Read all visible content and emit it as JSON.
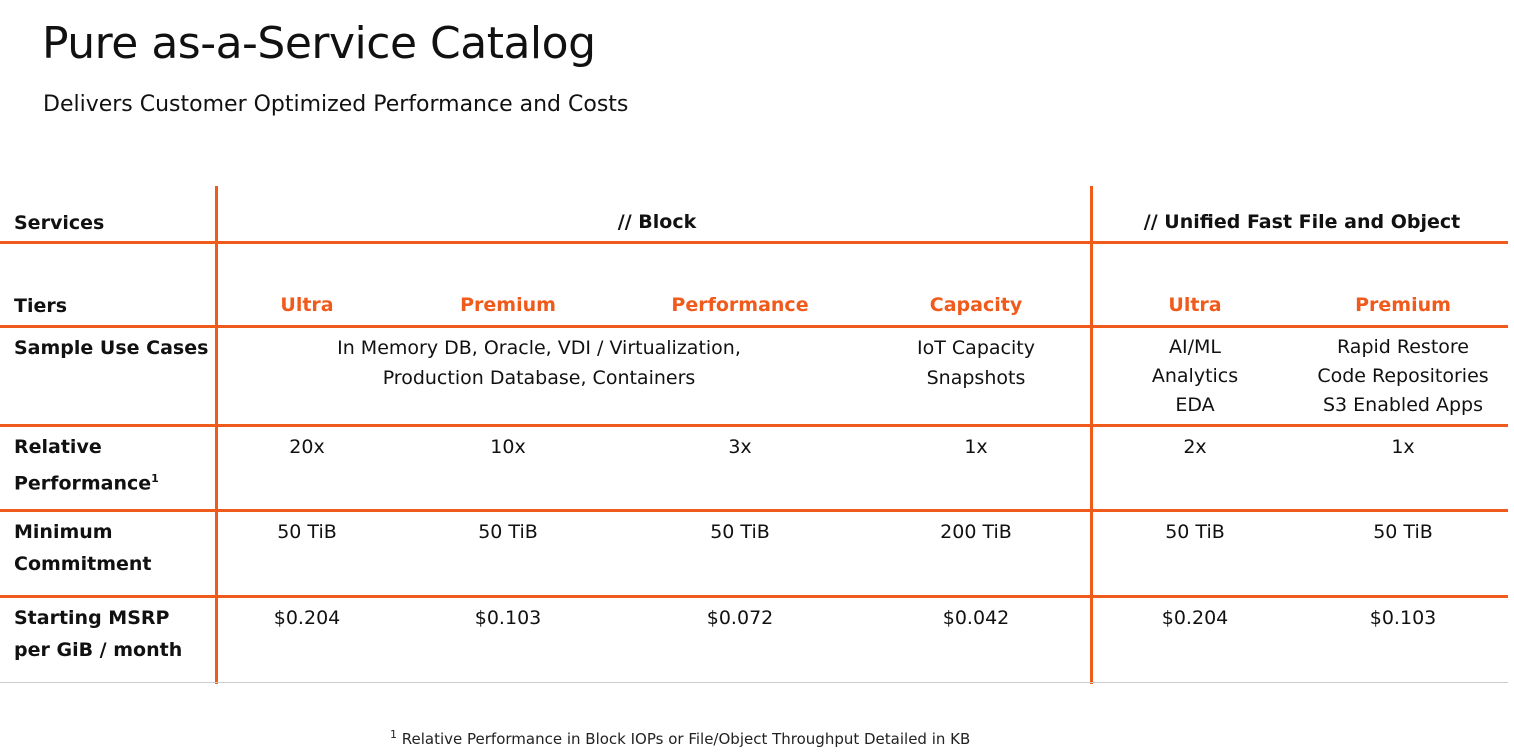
{
  "header": {
    "title": "Pure as-a-Service Catalog",
    "subtitle": "Delivers Customer Optimized Performance and Costs"
  },
  "table": {
    "row_labels": {
      "services": "Services",
      "tiers": "Tiers",
      "use_cases": "Sample Use Cases",
      "relative_performance": "Relative Performance",
      "relative_performance_sup": "1",
      "minimum_commitment": "Minimum Commitment",
      "msrp": "Starting MSRP per GiB / month"
    },
    "services": {
      "block": "// Block",
      "file_object": "// Unified Fast File and Object"
    },
    "tiers": [
      "Ultra",
      "Premium",
      "Performance",
      "Capacity",
      "Ultra",
      "Premium"
    ],
    "use_cases": {
      "block_shared": [
        "In Memory DB, Oracle, VDI / Virtualization,",
        "Production Database, Containers"
      ],
      "capacity": [
        "IoT Capacity",
        "Snapshots"
      ],
      "file_ultra": [
        "AI/ML",
        "Analytics",
        "EDA"
      ],
      "file_premium": [
        "Rapid Restore",
        "Code Repositories",
        "S3 Enabled Apps"
      ]
    },
    "relative_performance": [
      "20x",
      "10x",
      "3x",
      "1x",
      "2x",
      "1x"
    ],
    "minimum_commitment": [
      "50 TiB",
      "50 TiB",
      "50 TiB",
      "200 TiB",
      "50 TiB",
      "50 TiB"
    ],
    "msrp": [
      "$0.204",
      "$0.103",
      "$0.072",
      "$0.042",
      "$0.204",
      "$0.103"
    ]
  },
  "footnote": {
    "marker": "1",
    "text": " Relative Performance in Block IOPs or File/Object Throughput Detailed in KB"
  },
  "colors": {
    "accent": "#f05a1a",
    "divider": "#cccccc",
    "text": "#111111"
  }
}
